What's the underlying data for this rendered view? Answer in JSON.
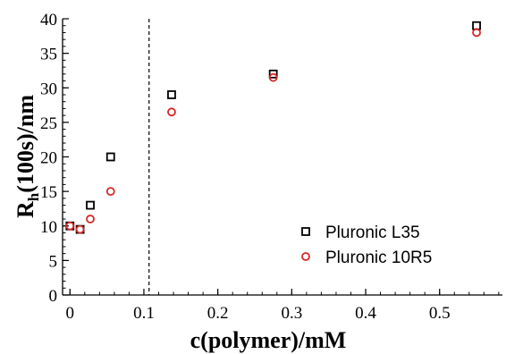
{
  "chart_data": {
    "type": "scatter",
    "xlabel": "c(polymer)/mM",
    "ylabel_main": "R",
    "ylabel_sub": "h",
    "ylabel_rest": "(100s)/nm",
    "xlim": [
      -0.01,
      0.585
    ],
    "ylim": [
      0,
      40
    ],
    "x_ticks": [
      0,
      0.1,
      0.2,
      0.3,
      0.4,
      0.5
    ],
    "x_tick_labels": [
      "0",
      "0.1",
      "0.2",
      "0.3",
      "0.4",
      "0.5"
    ],
    "y_ticks": [
      0,
      5,
      10,
      15,
      20,
      25,
      30,
      35,
      40
    ],
    "y_tick_labels": [
      "0",
      "5",
      "10",
      "15",
      "20",
      "25",
      "30",
      "35",
      "40"
    ],
    "grid": false,
    "legend_position": "right",
    "vline": {
      "x": 0.107,
      "style": "dashed"
    },
    "series": [
      {
        "name": "Pluronic L35",
        "marker": "square",
        "color": "#000000",
        "x": [
          0.0,
          0.0137,
          0.0275,
          0.055,
          0.1375,
          0.275,
          0.55
        ],
        "y": [
          10,
          9.5,
          13,
          20,
          29,
          32,
          39
        ]
      },
      {
        "name": "Pluronic 10R5",
        "marker": "circle",
        "color": "#d62728",
        "x": [
          0.0,
          0.0137,
          0.0275,
          0.055,
          0.1375,
          0.275,
          0.55
        ],
        "y": [
          10,
          9.5,
          11,
          15,
          26.5,
          31.5,
          38
        ]
      }
    ]
  }
}
